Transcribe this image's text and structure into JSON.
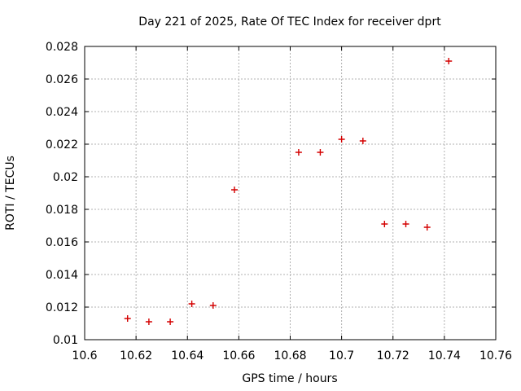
{
  "chart_data": {
    "type": "scatter",
    "title": "Day 221 of 2025, Rate Of TEC Index for receiver dprt",
    "xlabel": "GPS time / hours",
    "ylabel": "ROTI / TECUs",
    "xlim": [
      10.6,
      10.76
    ],
    "ylim": [
      0.01,
      0.028
    ],
    "x_ticks": [
      10.6,
      10.62,
      10.64,
      10.66,
      10.68,
      10.7,
      10.72,
      10.74,
      10.76
    ],
    "x_tick_labels": [
      "10.6",
      "10.62",
      "10.64",
      "10.66",
      "10.68",
      "10.7",
      "10.72",
      "10.74",
      "10.76"
    ],
    "y_ticks": [
      0.01,
      0.012,
      0.014,
      0.016,
      0.018,
      0.02,
      0.022,
      0.024,
      0.026,
      0.028
    ],
    "y_tick_labels": [
      "0.01",
      "0.012",
      "0.014",
      "0.016",
      "0.018",
      "0.02",
      "0.022",
      "0.024",
      "0.026",
      "0.028"
    ],
    "grid": true,
    "legend": "none",
    "marker": "plus",
    "colors": {
      "marker": "#d40000",
      "grid": "#b0b0b0",
      "axis": "#000000",
      "background": "#ffffff"
    },
    "series": [
      {
        "name": "ROTI",
        "points": [
          {
            "x": 10.6167,
            "y": 0.0113
          },
          {
            "x": 10.625,
            "y": 0.0111
          },
          {
            "x": 10.6333,
            "y": 0.0111
          },
          {
            "x": 10.6417,
            "y": 0.0122
          },
          {
            "x": 10.65,
            "y": 0.0121
          },
          {
            "x": 10.6583,
            "y": 0.0192
          },
          {
            "x": 10.6833,
            "y": 0.0215
          },
          {
            "x": 10.6917,
            "y": 0.0215
          },
          {
            "x": 10.7,
            "y": 0.0223
          },
          {
            "x": 10.7083,
            "y": 0.0222
          },
          {
            "x": 10.7167,
            "y": 0.0171
          },
          {
            "x": 10.725,
            "y": 0.0171
          },
          {
            "x": 10.7333,
            "y": 0.0169
          },
          {
            "x": 10.7417,
            "y": 0.0271
          }
        ]
      }
    ]
  }
}
